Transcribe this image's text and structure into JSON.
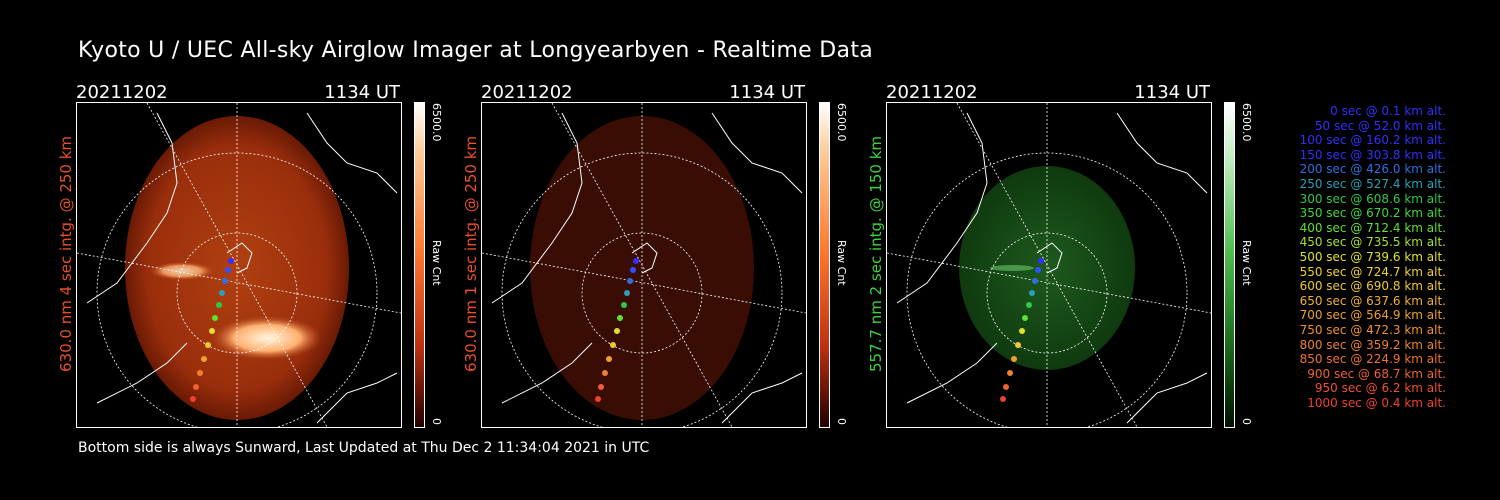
{
  "title": "Kyoto U / UEC All-sky Airglow Imager at Longyearbyen - Realtime Data",
  "panels": [
    {
      "date": "20211202",
      "time": "1134 UT",
      "side_label": "630.0 nm  4 sec intg. @ 250 km",
      "side_color": "#e8502a",
      "glow": "red",
      "colorbar_max": "6500.0",
      "colorbar_label": "Raw Cnt",
      "colorbar_min": "0"
    },
    {
      "date": "20211202",
      "time": "1134 UT",
      "side_label": "630.0 nm  1 sec intg. @ 250 km",
      "side_color": "#e8502a",
      "glow": "dimred",
      "colorbar_max": "6500.0",
      "colorbar_label": "Raw Cnt",
      "colorbar_min": "0"
    },
    {
      "date": "20211202",
      "time": "1134 UT",
      "side_label": "557.7 nm  2 sec intg. @ 150 km",
      "side_color": "#3fd23f",
      "glow": "green",
      "colorbar_max": "6500.0",
      "colorbar_label": "Raw Cnt",
      "colorbar_min": "0"
    }
  ],
  "footer": "Bottom side is always Sunward, Last Updated at Thu Dec  2 11:34:04 2021 in UTC",
  "legend": [
    {
      "text": "0 sec @    0.1 km alt.",
      "color": "#3030ff"
    },
    {
      "text": "50 sec @   52.0 km alt.",
      "color": "#3030ff"
    },
    {
      "text": "100 sec @  160.2 km alt.",
      "color": "#3030ff"
    },
    {
      "text": "150 sec @  303.8 km alt.",
      "color": "#3030ff"
    },
    {
      "text": "200 sec @  426.0 km alt.",
      "color": "#2f6fe0"
    },
    {
      "text": "250 sec @  527.4 km alt.",
      "color": "#2aa0b8"
    },
    {
      "text": "300 sec @  608.6 km alt.",
      "color": "#2fc84a"
    },
    {
      "text": "350 sec @  670.2 km alt.",
      "color": "#3ed83a"
    },
    {
      "text": "400 sec @  712.4 km alt.",
      "color": "#60e030"
    },
    {
      "text": "450 sec @  735.5 km alt.",
      "color": "#a6e030"
    },
    {
      "text": "500 sec @  739.6 km alt.",
      "color": "#e0e030"
    },
    {
      "text": "550 sec @  724.7 km alt.",
      "color": "#f0d030"
    },
    {
      "text": "600 sec @  690.8 km alt.",
      "color": "#f0c830"
    },
    {
      "text": "650 sec @  637.6 km alt.",
      "color": "#f0b030"
    },
    {
      "text": "700 sec @  564.9 km alt.",
      "color": "#f0a030"
    },
    {
      "text": "750 sec @  472.3 km alt.",
      "color": "#f09030"
    },
    {
      "text": "800 sec @  359.2 km alt.",
      "color": "#f08030"
    },
    {
      "text": "850 sec @  224.9 km alt.",
      "color": "#f07030"
    },
    {
      "text": "900 sec @   68.7 km alt.",
      "color": "#f06030"
    },
    {
      "text": "950 sec @    6.2 km alt.",
      "color": "#f05030"
    },
    {
      "text": "1000 sec @    0.4 km alt.",
      "color": "#f04030"
    }
  ]
}
